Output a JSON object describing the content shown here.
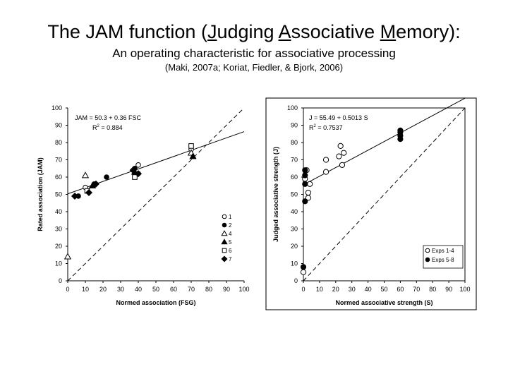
{
  "header": {
    "title_pre": "The JAM function (",
    "title_j": "J",
    "title_udging": "udging ",
    "title_a": "A",
    "title_ssociative": "ssociative ",
    "title_m": "M",
    "title_post": "emory):",
    "subtitle": "An operating characteristic for associative processing",
    "citation": "(Maki, 2007a; Koriat, Fiedler, & Bjork, 2006)"
  },
  "chart_data": [
    {
      "type": "scatter",
      "xlabel": "Normed association (FSG)",
      "ylabel": "Rated association (JAM)",
      "xlim": [
        0,
        100
      ],
      "ylim": [
        0,
        100
      ],
      "xticks": [
        "0",
        "10",
        "20",
        "30",
        "40",
        "50",
        "60",
        "70",
        "80",
        "90",
        "100"
      ],
      "yticks": [
        "0",
        "10",
        "20",
        "30",
        "40",
        "50",
        "60",
        "70",
        "80",
        "90",
        "100"
      ],
      "annotation_eq": "JAM = 50.3 + 0.36 FSC",
      "annotation_r2_base": "R",
      "annotation_r2_exp": "2",
      "annotation_r2_val": " = 0.884",
      "regression": {
        "intercept": 50.3,
        "slope": 0.36
      },
      "diagonal": true,
      "legend_position": "right",
      "series": [
        {
          "name": "1",
          "marker": "circle-open",
          "points": [
            [
              10,
              54
            ],
            [
              40,
              67
            ],
            [
              70,
              76
            ]
          ]
        },
        {
          "name": "2",
          "marker": "circle-filled",
          "points": [
            [
              6,
              49
            ],
            [
              15,
              56
            ],
            [
              22,
              60
            ],
            [
              38,
              65
            ],
            [
              40,
              62
            ]
          ]
        },
        {
          "name": "4",
          "marker": "triangle-open",
          "points": [
            [
              0,
              14
            ],
            [
              10,
              61
            ],
            [
              70,
              74
            ]
          ]
        },
        {
          "name": "5",
          "marker": "triangle-filled",
          "points": [
            [
              14,
              55
            ],
            [
              38,
              63
            ],
            [
              71,
              72
            ]
          ]
        },
        {
          "name": "6",
          "marker": "square-open",
          "points": [
            [
              11,
              52
            ],
            [
              38,
              60
            ],
            [
              70,
              78
            ]
          ]
        },
        {
          "name": "7",
          "marker": "diamond-filled",
          "points": [
            [
              4,
              49
            ],
            [
              12,
              51
            ],
            [
              16,
              56
            ],
            [
              37,
              64
            ],
            [
              40,
              62
            ]
          ]
        }
      ]
    },
    {
      "type": "scatter",
      "xlabel": "Normed associative strength (S)",
      "ylabel": "Judged associative strength (J)",
      "xlim": [
        0,
        100
      ],
      "ylim": [
        0,
        100
      ],
      "xticks": [
        "0",
        "10",
        "20",
        "30",
        "40",
        "50",
        "60",
        "70",
        "80",
        "90",
        "100"
      ],
      "yticks": [
        "0",
        "10",
        "20",
        "30",
        "40",
        "50",
        "60",
        "70",
        "80",
        "90",
        "100"
      ],
      "annotation_eq": "J = 55.49 + 0.5013 S",
      "annotation_r2_base": "R",
      "annotation_r2_exp": "2",
      "annotation_r2_val": " = 0.7537",
      "regression": {
        "intercept": 55.49,
        "slope": 0.5013
      },
      "diagonal": true,
      "legend_position": "bottom-right",
      "series": [
        {
          "name": "Exps 1-4",
          "marker": "circle-open",
          "points": [
            [
              0,
              5
            ],
            [
              1,
              59
            ],
            [
              2,
              64
            ],
            [
              3,
              48
            ],
            [
              3,
              51
            ],
            [
              4,
              56
            ],
            [
              14,
              63
            ],
            [
              14,
              70
            ],
            [
              22,
              72
            ],
            [
              23,
              78
            ],
            [
              24,
              67
            ],
            [
              25,
              74
            ]
          ]
        },
        {
          "name": "Exps 5-8",
          "marker": "circle-filled",
          "points": [
            [
              0,
              8
            ],
            [
              1,
              46
            ],
            [
              1,
              56
            ],
            [
              1,
              61
            ],
            [
              1,
              64
            ],
            [
              60,
              82
            ],
            [
              60,
              84
            ],
            [
              60,
              86
            ],
            [
              60,
              87
            ]
          ]
        }
      ]
    }
  ]
}
